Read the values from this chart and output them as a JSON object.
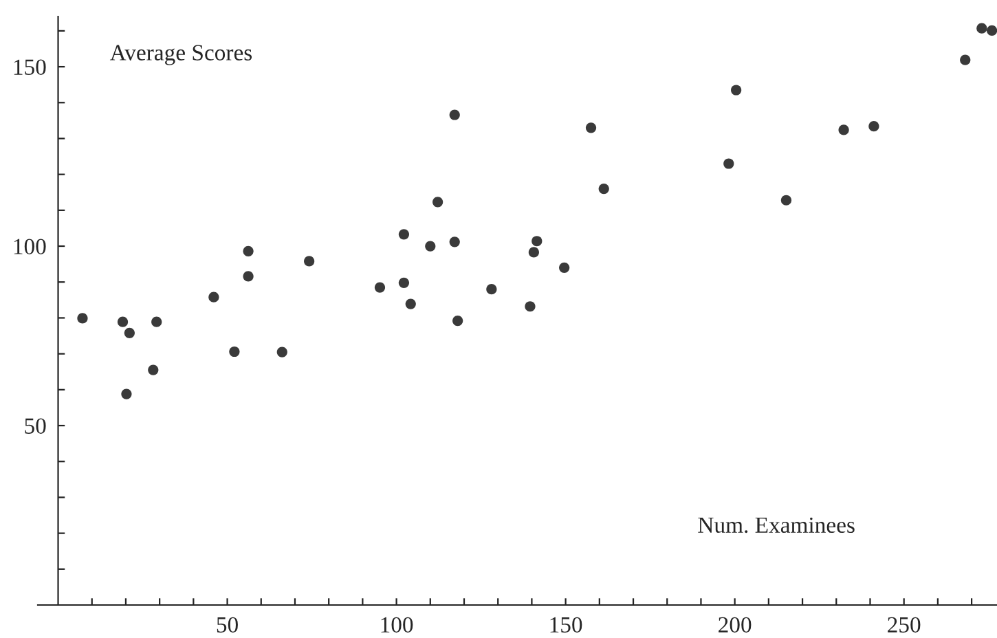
{
  "chart_data": {
    "type": "scatter",
    "xlabel": "Num. Examinees",
    "ylabel": "Average Scores",
    "x": [
      7.2,
      19.1,
      21.1,
      20.2,
      29.1,
      28.1,
      46.0,
      52.1,
      56.2,
      56.2,
      66.2,
      74.2,
      95.1,
      102.2,
      102.2,
      104.2,
      110.0,
      112.2,
      117.2,
      117.2,
      118.1,
      128.1,
      139.5,
      140.6,
      141.5,
      149.6,
      157.5,
      161.3,
      198.2,
      200.4,
      215.2,
      232.2,
      241.1,
      268.1,
      273.0,
      276.0
    ],
    "values": [
      79.9,
      78.9,
      75.8,
      58.8,
      78.9,
      65.5,
      85.8,
      70.6,
      98.6,
      91.6,
      70.5,
      95.8,
      88.5,
      103.3,
      89.8,
      83.9,
      100.0,
      112.3,
      136.6,
      101.2,
      79.2,
      88.0,
      83.2,
      98.3,
      101.4,
      94.0,
      133.0,
      116.0,
      123.0,
      143.5,
      112.8,
      132.4,
      133.4,
      151.9,
      160.7,
      160.1
    ],
    "color": "#3a3a3a",
    "marker": "circle",
    "xlim": [
      -6,
      277.5
    ],
    "ylim": [
      0,
      164
    ],
    "xticks": [
      {
        "value": 10,
        "label": null
      },
      {
        "value": 20,
        "label": null
      },
      {
        "value": 30,
        "label": null
      },
      {
        "value": 40,
        "label": null
      },
      50,
      {
        "value": 60,
        "label": null
      },
      {
        "value": 70,
        "label": null
      },
      {
        "value": 80,
        "label": null
      },
      {
        "value": 90,
        "label": null
      },
      100,
      {
        "value": 110,
        "label": null
      },
      {
        "value": 120,
        "label": null
      },
      {
        "value": 130,
        "label": null
      },
      {
        "value": 140,
        "label": null
      },
      150,
      {
        "value": 160,
        "label": null
      },
      {
        "value": 170,
        "label": null
      },
      {
        "value": 180,
        "label": null
      },
      {
        "value": 190,
        "label": null
      },
      200,
      {
        "value": 210,
        "label": null
      },
      {
        "value": 220,
        "label": null
      },
      {
        "value": 230,
        "label": null
      },
      {
        "value": 240,
        "label": null
      },
      250,
      {
        "value": 260,
        "label": null
      },
      {
        "value": 270,
        "label": null
      }
    ],
    "yticks": [
      {
        "value": 10,
        "label": null
      },
      {
        "value": 20,
        "label": null
      },
      {
        "value": 30,
        "label": null
      },
      {
        "value": 40,
        "label": null
      },
      50,
      {
        "value": 60,
        "label": null
      },
      {
        "value": 70,
        "label": null
      },
      {
        "value": 80,
        "label": null
      },
      {
        "value": 90,
        "label": null
      },
      100,
      {
        "value": 110,
        "label": null
      },
      {
        "value": 120,
        "label": null
      },
      {
        "value": 130,
        "label": null
      },
      {
        "value": 140,
        "label": null
      },
      150,
      {
        "value": 160,
        "label": null
      }
    ]
  }
}
